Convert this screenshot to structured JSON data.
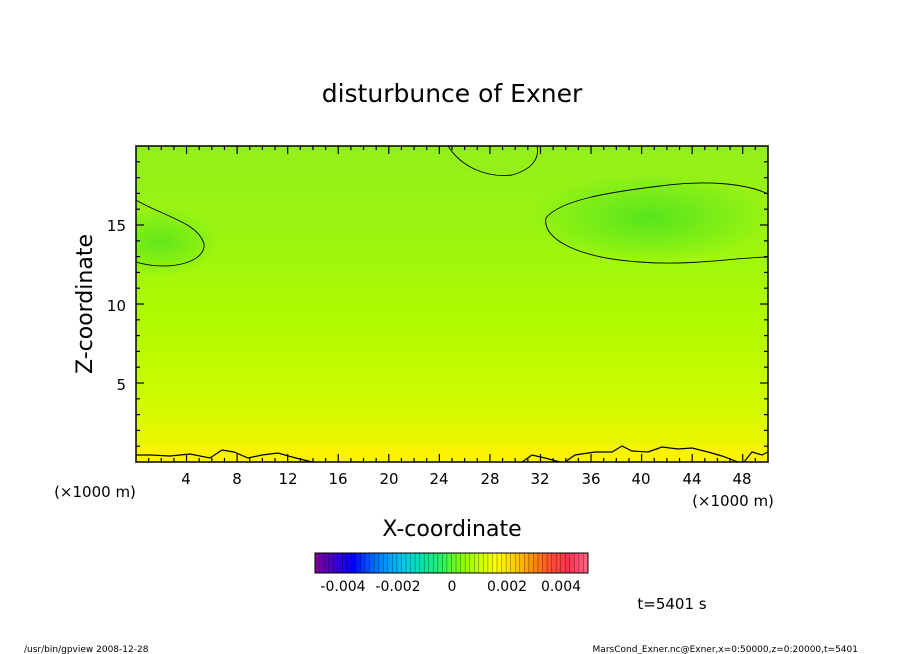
{
  "chart_data": {
    "type": "heatmap",
    "title": "disturbunce of Exner",
    "xlabel": "X-coordinate",
    "ylabel": "Z-coordinate",
    "x_unit": "(×1000 m)",
    "y_unit": "(×1000 m)",
    "xlim": [
      0,
      50
    ],
    "ylim": [
      0,
      20
    ],
    "x_ticks": [
      "4",
      "8",
      "12",
      "16",
      "20",
      "24",
      "28",
      "32",
      "36",
      "40",
      "44",
      "48"
    ],
    "y_ticks": [
      "5",
      "10",
      "15"
    ],
    "colorbar": {
      "range": [
        -0.005,
        0.005
      ],
      "tick_labels": [
        "-0.004",
        "-0.002",
        "0",
        "0.002",
        "0.004"
      ],
      "tick_values": [
        -0.004,
        -0.002,
        0,
        0.002,
        0.004
      ],
      "colors": [
        "#7a00a0",
        "#3a00d0",
        "#0000ff",
        "#0060ff",
        "#00a0ff",
        "#00d0e0",
        "#00e8a0",
        "#30f060",
        "#80ff00",
        "#c8ff00",
        "#ffff00",
        "#ffd000",
        "#ff9000",
        "#ff5030",
        "#ff3050",
        "#ff6080"
      ]
    },
    "field_description_values": {
      "near_surface_max": 0.0008,
      "upper_left_min": -0.0006,
      "upper_right_min": -0.0007
    },
    "time_label": "t=5401 s"
  },
  "footer": {
    "left": "/usr/bin/gpview  2008-12-28",
    "right": "MarsCond_Exner.nc@Exner,x=0:50000,z=0:20000,t=5401"
  }
}
